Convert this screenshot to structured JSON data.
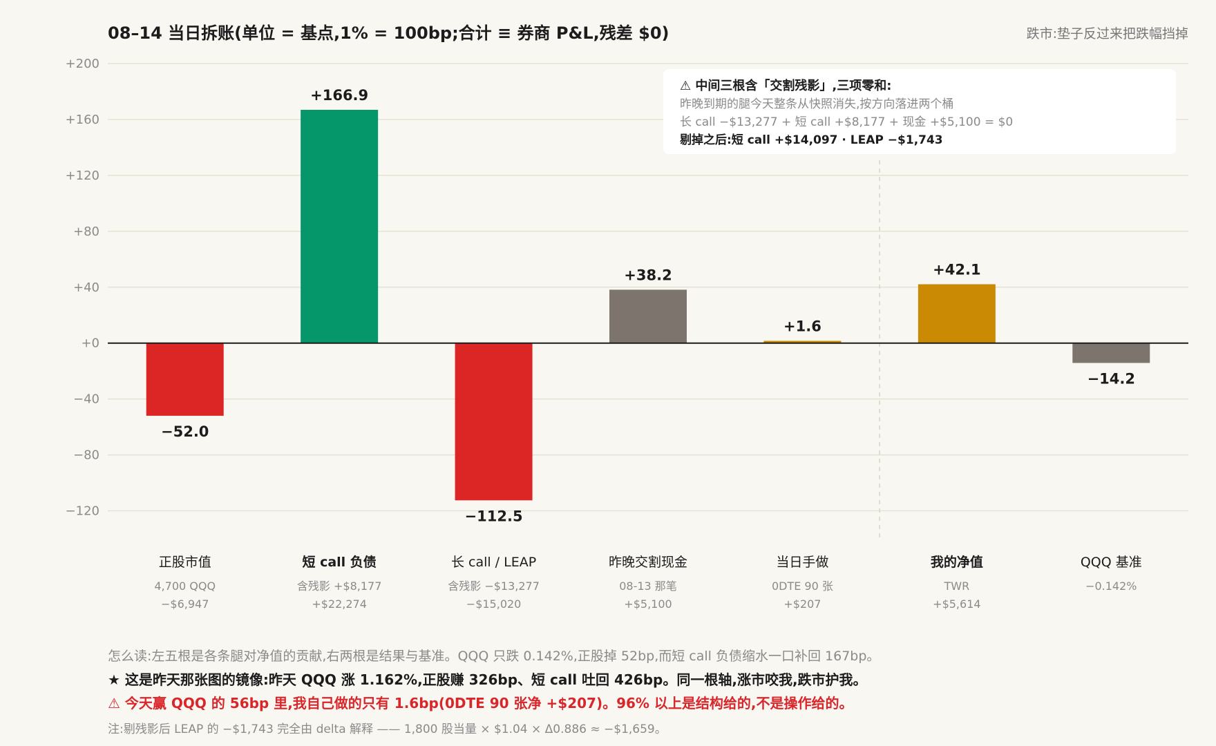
{
  "header": {
    "title": "08–14 当日拆账(单位 = 基点,1% = 100bp;合计 ≡ 券商 P&L,残差 $0)",
    "subtitle": "跌市:垫子反过来把跌幅挡掉"
  },
  "note_box": {
    "heading": "⚠ 中间三根含「交割残影」,三项零和:",
    "line1": "昨晚到期的腿今天整条从快照消失,按方向落进两个桶",
    "line2": "长 call −$13,277 + 短 call +$8,177 + 现金 +$5,100 = $0",
    "line3": "剔掉之后:短 call +$14,097 · LEAP −$1,743"
  },
  "colors": {
    "negative": "#dc2626",
    "positive": "#059669",
    "neutral": "#7d746e",
    "result": "#ca8a04",
    "grid": "#e7e1d3",
    "axis_text": "#8a8a8a",
    "baseline": "#1c1c1c"
  },
  "chart_data": {
    "type": "bar",
    "title": "08–14 当日拆账(单位 = 基点,1% = 100bp;合计 ≡ 券商 P&L,残差 $0)",
    "ylim": [
      -140,
      200
    ],
    "yticks": [
      {
        "value": 200,
        "label": "+200"
      },
      {
        "value": 160,
        "label": "+160"
      },
      {
        "value": 120,
        "label": "+120"
      },
      {
        "value": 80,
        "label": "+80"
      },
      {
        "value": 40,
        "label": "+40"
      },
      {
        "value": 0,
        "label": "+0"
      },
      {
        "value": -40,
        "label": "−40"
      },
      {
        "value": -80,
        "label": "−80"
      },
      {
        "value": -120,
        "label": "−120"
      }
    ],
    "grid": true,
    "bars": [
      {
        "category": "正股市值",
        "value": -52.0,
        "value_label": "−52.0",
        "sub1": "4,700 QQQ",
        "sub2": "−$6,947",
        "color": "negative",
        "bold": false
      },
      {
        "category": "短 call 负债",
        "value": 166.9,
        "value_label": "+166.9",
        "sub1": "含残影 +$8,177",
        "sub2": "+$22,274",
        "color": "positive",
        "bold": true
      },
      {
        "category": "长 call / LEAP",
        "value": -112.5,
        "value_label": "−112.5",
        "sub1": "含残影 −$13,277",
        "sub2": "−$15,020",
        "color": "negative",
        "bold": false
      },
      {
        "category": "昨晚交割现金",
        "value": 38.2,
        "value_label": "+38.2",
        "sub1": "08-13 那笔",
        "sub2": "+$5,100",
        "color": "neutral",
        "bold": false
      },
      {
        "category": "当日手做",
        "value": 1.6,
        "value_label": "+1.6",
        "sub1": "0DTE 90 张",
        "sub2": "+$207",
        "color": "result",
        "bold": false
      },
      {
        "category": "我的净值",
        "value": 42.1,
        "value_label": "+42.1",
        "sub1": "TWR",
        "sub2": "+$5,614",
        "color": "result",
        "bold": true
      },
      {
        "category": "QQQ 基准",
        "value": -14.2,
        "value_label": "−14.2",
        "sub1": "−0.142%",
        "sub2": "",
        "color": "neutral",
        "bold": false
      }
    ]
  },
  "footer": {
    "line1": "怎么读:左五根是各条腿对净值的贡献,右两根是结果与基准。QQQ 只跌 0.142%,正股掉 52bp,而短 call 负债缩水一口补回 167bp。",
    "line2": "★ 这是昨天那张图的镜像:昨天 QQQ 涨 1.162%,正股赚 326bp、短 call 吐回 426bp。同一根轴,涨市咬我,跌市护我。",
    "line3": "⚠ 今天赢 QQQ 的 56bp 里,我自己做的只有 1.6bp(0DTE 90 张净 +$207)。96% 以上是结构给的,不是操作给的。",
    "line4": "注:剔残影后 LEAP 的 −$1,743 完全由 delta 解释 —— 1,800 股当量 × $1.04 × Δ0.886 ≈ −$1,659。"
  }
}
